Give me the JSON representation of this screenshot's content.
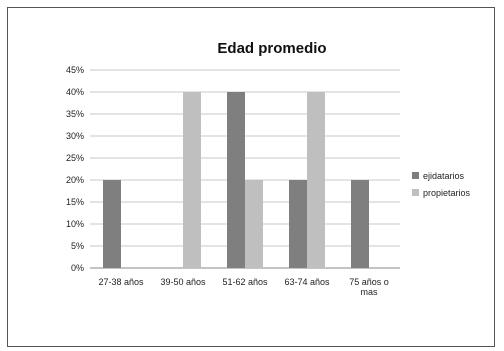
{
  "chart_data": {
    "type": "bar",
    "title": "Edad promedio",
    "categories": [
      "27-38 años",
      "39-50 años",
      "51-62 años",
      "63-74 años",
      "75 años o mas"
    ],
    "category_lines": [
      [
        "27-38 años"
      ],
      [
        "39-50 años"
      ],
      [
        "51-62 años"
      ],
      [
        "63-74 años"
      ],
      [
        "75 años o",
        "mas"
      ]
    ],
    "series": [
      {
        "name": "ejidatarios",
        "color": "#7f7f7f",
        "values": [
          20,
          0,
          40,
          20,
          20
        ]
      },
      {
        "name": "propietarios",
        "color": "#bfbfbf",
        "values": [
          0,
          40,
          20,
          40,
          0
        ]
      }
    ],
    "ylim": [
      0,
      45
    ],
    "yticks": [
      0,
      5,
      10,
      15,
      20,
      25,
      30,
      35,
      40,
      45
    ],
    "ytick_labels": [
      "0%",
      "5%",
      "10%",
      "15%",
      "20%",
      "25%",
      "30%",
      "35%",
      "40%",
      "45%"
    ],
    "grid": true,
    "legend_position": "right"
  }
}
